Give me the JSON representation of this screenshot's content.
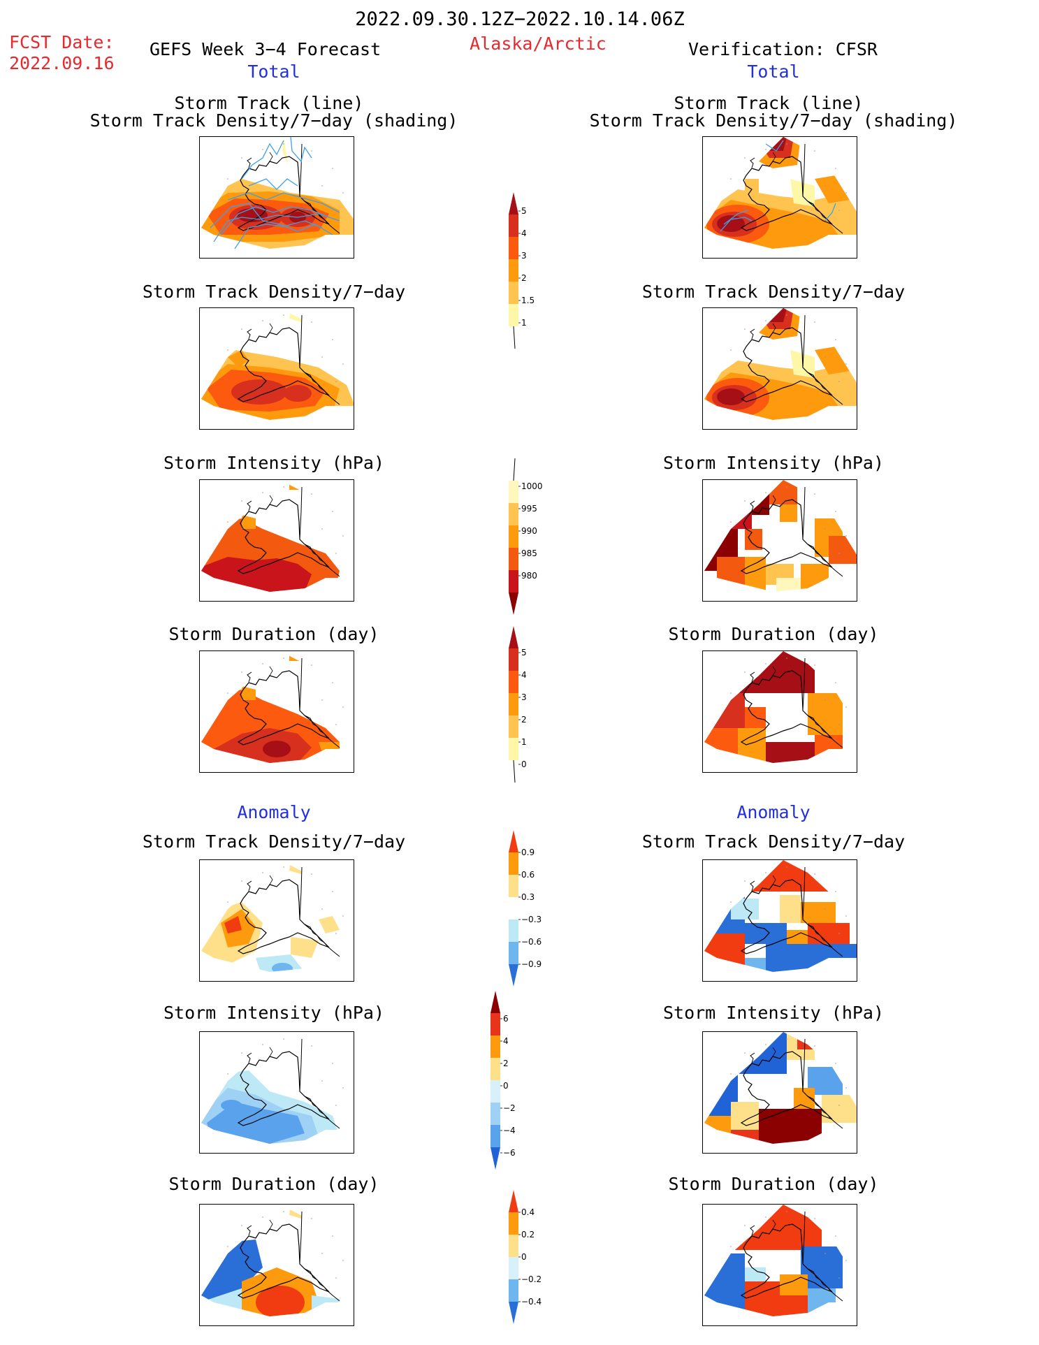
{
  "header": {
    "period": "2022.09.30.12Z−2022.10.14.06Z",
    "fcst_label": "FCST Date:",
    "fcst_date": "2022.09.16",
    "forecast_title": "GEFS Week 3−4 Forecast",
    "region": "Alaska/Arctic",
    "verification": "Verification: CFSR",
    "total_left": "Total",
    "total_right": "Total",
    "anomaly_left": "Anomaly",
    "anomaly_right": "Anomaly"
  },
  "panels": {
    "track_line": "Storm Track (line)",
    "track_density_shading": "Storm Track Density/7−day (shading)",
    "track_density": "Storm Track Density/7−day",
    "intensity": "Storm Intensity (hPa)",
    "duration": "Storm Duration (day)"
  },
  "colorbars": {
    "density_total": {
      "labels": [
        "5",
        "4",
        "3",
        "2",
        "1.5",
        "1"
      ],
      "colors": [
        "#a50f15",
        "#d7301f",
        "#fc5a0e",
        "#fd9a0e",
        "#fec44f",
        "#fff7a8"
      ]
    },
    "intensity_total": {
      "labels": [
        "1000",
        "995",
        "990",
        "985",
        "980"
      ],
      "colors": [
        "#fff7bc",
        "#fec44f",
        "#fe9a0e",
        "#f35a10",
        "#c8141a",
        "#8b0000"
      ]
    },
    "duration_total": {
      "labels": [
        "5",
        "4",
        "3",
        "2",
        "1",
        "0"
      ],
      "colors": [
        "#a50f15",
        "#d7301f",
        "#fc5a0e",
        "#fd9a0e",
        "#fec44f",
        "#fff7a8"
      ]
    },
    "density_anom": {
      "labels": [
        "0.9",
        "0.6",
        "0.3",
        "−0.3",
        "−0.6",
        "−0.9"
      ],
      "colors": [
        "#f03c10",
        "#fd9a0e",
        "#fee08b",
        "#ffffff",
        "#bde8f5",
        "#6fb6ee",
        "#2a6fd8"
      ]
    },
    "intensity_anom": {
      "labels": [
        "6",
        "4",
        "2",
        "0",
        "−2",
        "−4",
        "−6"
      ],
      "colors": [
        "#8b0000",
        "#e8341a",
        "#fd9a0e",
        "#fee08b",
        "#d8f0fa",
        "#9fd1f5",
        "#5aa2ec",
        "#1f63d6"
      ]
    },
    "duration_anom": {
      "labels": [
        "0.4",
        "0.2",
        "0",
        "−0.2",
        "−0.4"
      ],
      "colors": [
        "#f03c10",
        "#fd9a0e",
        "#fee08b",
        "#d8f0fa",
        "#6fb6ee",
        "#2a6fd8"
      ]
    }
  }
}
